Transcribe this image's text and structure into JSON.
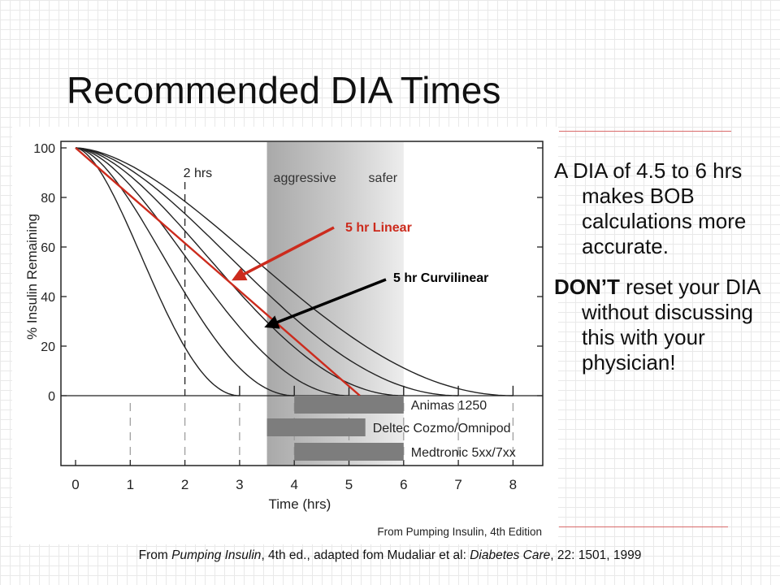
{
  "slide": {
    "title": "Recommended DIA Times",
    "bullets": [
      {
        "bold": "",
        "text": "A DIA of 4.5 to 6 hrs makes BOB calculations more accurate."
      },
      {
        "bold": "DON’T",
        "text": " reset your DIA without discussing this with your physician!"
      }
    ],
    "caption": {
      "prefix": "From ",
      "book": "Pumping Insulin",
      "middle": ", 4th ed., adapted fom Mudaliar et al: ",
      "journal": "Diabetes Care",
      "suffix": ", 22: 1501, 1999"
    },
    "accent_colors": {
      "linear": "#cc2b1d",
      "curvilinear_arrow": "#000000",
      "rule": "#d86a6a"
    }
  },
  "chart_data": {
    "type": "line",
    "title": "",
    "xlabel": "Time (hrs)",
    "ylabel": "% Insulin Remaining",
    "xlim": [
      0,
      8
    ],
    "ylim": [
      0,
      100
    ],
    "x_ticks": [
      "0",
      "1",
      "2",
      "3",
      "4",
      "5",
      "6",
      "7",
      "8"
    ],
    "y_ticks": [
      "0",
      "20",
      "40",
      "60",
      "80",
      "100"
    ],
    "grid": false,
    "credit": "From Pumping Insulin, 4th Edition",
    "band": {
      "from": 3.5,
      "to": 6,
      "labels": [
        "aggressive",
        "safer"
      ]
    },
    "two_hr_marker": {
      "x": 2,
      "label": "2 hrs"
    },
    "curves": [
      {
        "dia": 3
      },
      {
        "dia": 4
      },
      {
        "dia": 5
      },
      {
        "dia": 6
      },
      {
        "dia": 7
      },
      {
        "dia": 8
      }
    ],
    "linear_series": {
      "points": [
        [
          0,
          100
        ],
        [
          5.2,
          0
        ]
      ]
    },
    "annotations": [
      {
        "text": "5 hr Linear",
        "target": [
          2.9,
          47
        ]
      },
      {
        "text": "5 hr Curvilinear",
        "target": [
          3.5,
          28
        ]
      }
    ],
    "pump_bars": [
      {
        "label": "Animas 1250",
        "from": 4,
        "to": 6
      },
      {
        "label": "Deltec Cozmo/Omnipod",
        "from": 3.5,
        "to": 5.3
      },
      {
        "label": "Medtronic 5xx/7xx",
        "from": 4,
        "to": 6
      }
    ]
  }
}
